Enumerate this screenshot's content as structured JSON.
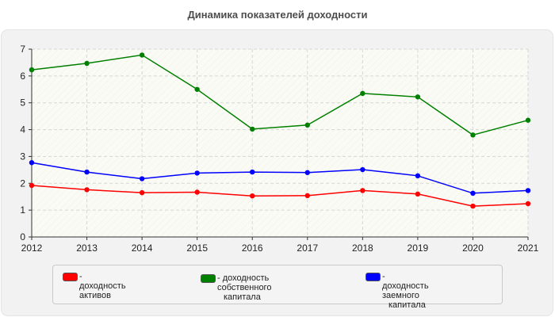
{
  "chart_data": {
    "type": "line",
    "title": "Динамика показателей доходности",
    "xlabel": "",
    "ylabel": "",
    "x": [
      "2012",
      "2013",
      "2014",
      "2015",
      "2016",
      "2017",
      "2018",
      "2019",
      "2020",
      "2021"
    ],
    "ylim": [
      0,
      7
    ],
    "yticks": [
      "0",
      "1",
      "2",
      "3",
      "4",
      "5",
      "6",
      "7"
    ],
    "grid": true,
    "legend_position": "bottom",
    "series": [
      {
        "name": "- доходность активов",
        "name_lines": [
          "- доходность активов"
        ],
        "color": "#ff0000",
        "values": [
          1.92,
          1.76,
          1.65,
          1.67,
          1.53,
          1.54,
          1.73,
          1.6,
          1.15,
          1.24
        ]
      },
      {
        "name": "- доходность собственного капитала",
        "name_lines": [
          "- доходность собственного",
          "капитала"
        ],
        "color": "#008000",
        "values": [
          6.23,
          6.47,
          6.78,
          5.5,
          4.02,
          4.17,
          5.35,
          5.22,
          3.8,
          4.35
        ]
      },
      {
        "name": "- доходность заемного капитала",
        "name_lines": [
          "- доходность заемного",
          "капитала"
        ],
        "color": "#0000ff",
        "values": [
          2.77,
          2.42,
          2.17,
          2.38,
          2.42,
          2.4,
          2.51,
          2.28,
          1.63,
          1.73
        ]
      }
    ]
  }
}
